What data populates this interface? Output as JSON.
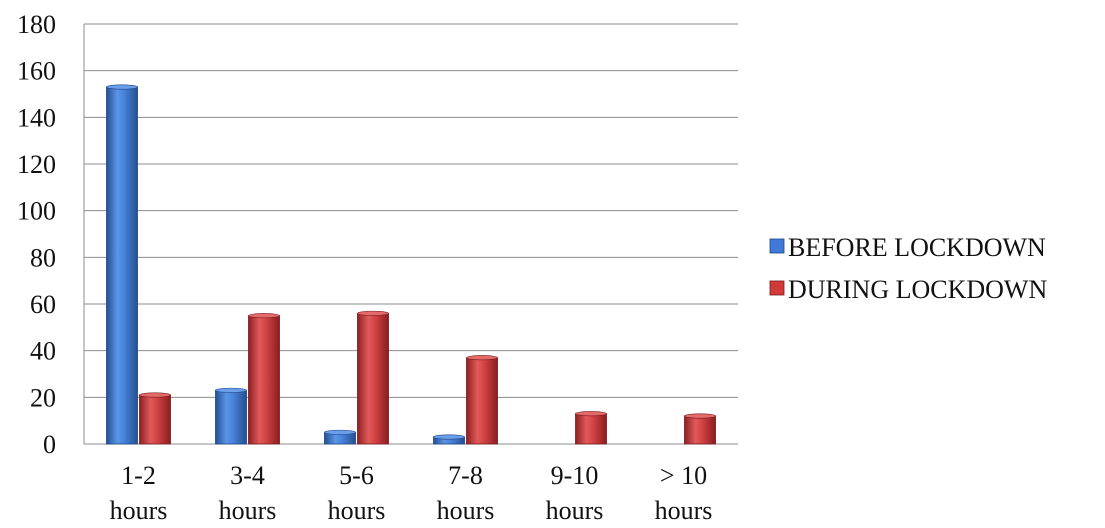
{
  "chart_data": {
    "type": "bar",
    "title": "",
    "xlabel": "",
    "ylabel": "",
    "categories": [
      [
        "1-2",
        "hours"
      ],
      [
        "3-4",
        "hours"
      ],
      [
        "5-6",
        "hours"
      ],
      [
        "7-8",
        "hours"
      ],
      [
        "9-10",
        "hours"
      ],
      [
        "> 10",
        "hours"
      ]
    ],
    "series": [
      {
        "name": "BEFORE LOCKDOWN",
        "color": "#3f7ad6",
        "values": [
          153,
          23,
          5,
          3,
          0,
          0
        ]
      },
      {
        "name": "DURING LOCKDOWN",
        "color": "#d03a3a",
        "values": [
          21,
          55,
          56,
          37,
          13,
          12
        ]
      }
    ],
    "ylim": [
      0,
      180
    ],
    "yticks": [
      0,
      20,
      40,
      60,
      80,
      100,
      120,
      140,
      160,
      180
    ],
    "grid": true,
    "legend": "right",
    "style": "3d-cylinder-gradient"
  }
}
